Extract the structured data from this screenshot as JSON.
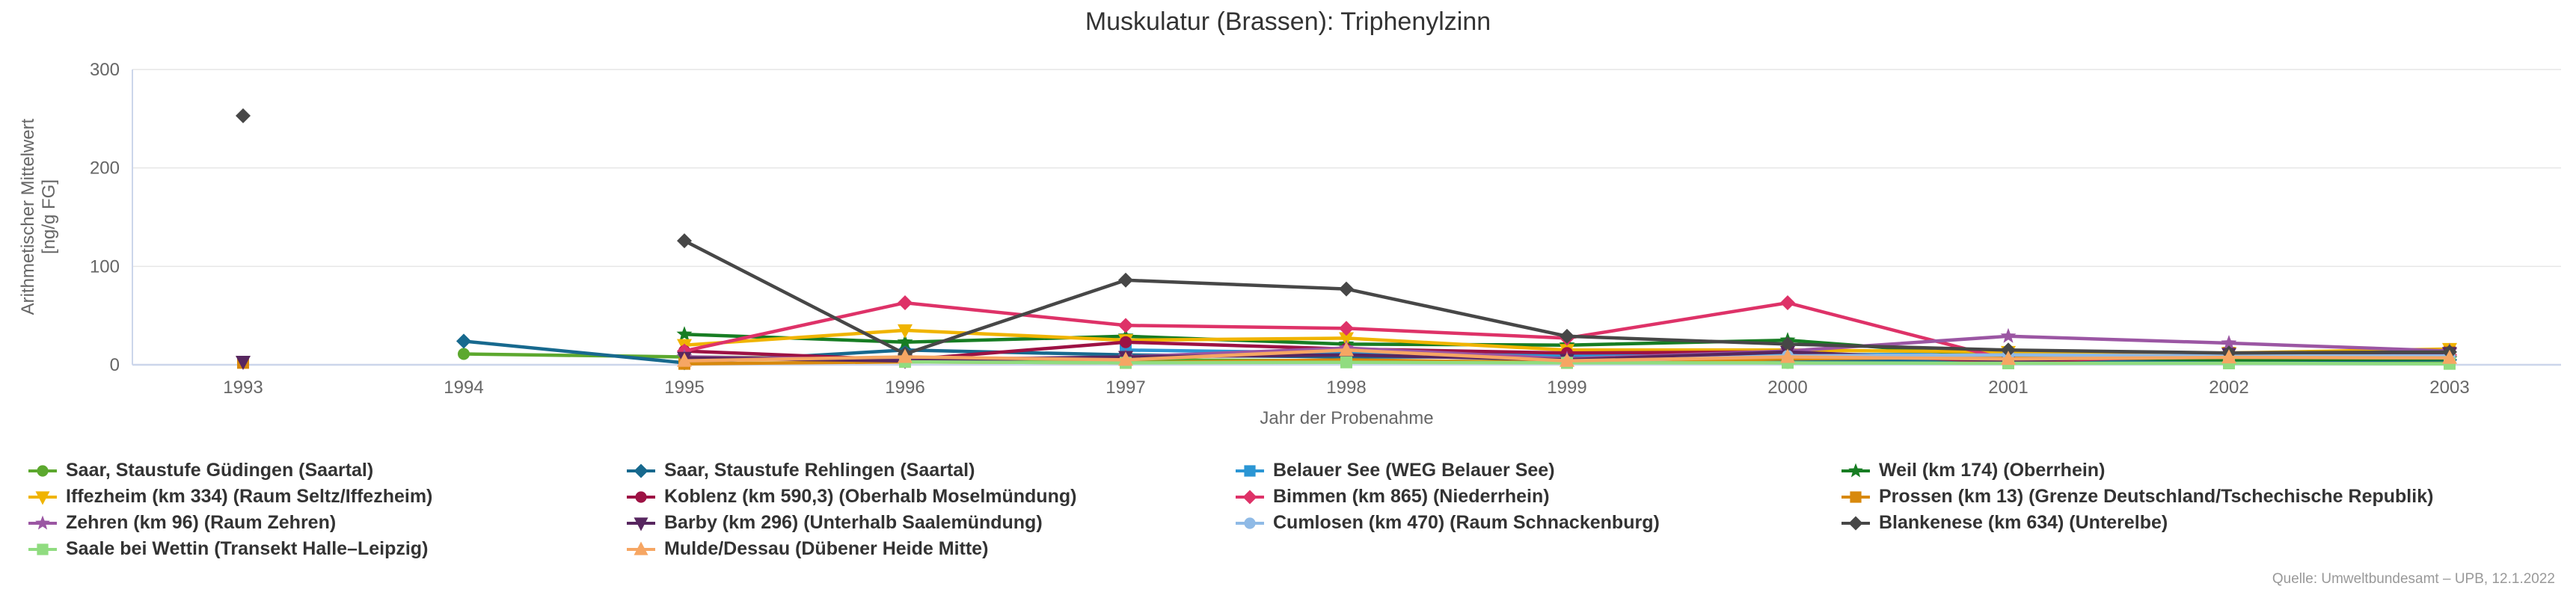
{
  "title": "Muskulatur (Brassen): Triphenylzinn",
  "source": "Quelle: Umweltbundesamt – UPB, 12.1.2022",
  "y_axis": {
    "title_line1": "Arithmetischer Mittelwert",
    "title_line2": "[ng/g FG]",
    "ticks": [
      0,
      100,
      200,
      300
    ]
  },
  "x_axis": {
    "title": "Jahr der Probenahme"
  },
  "colors": {
    "grid": "#e6e6e6",
    "axis_line": "#ccd6eb",
    "tick_text": "#666666",
    "title_text": "#333333",
    "source_text": "#999999"
  },
  "chart_data": {
    "type": "line",
    "title": "Muskulatur (Brassen): Triphenylzinn",
    "xlabel": "Jahr der Probenahme",
    "ylabel": "Arithmetischer Mittelwert [ng/g FG]",
    "categories": [
      1993,
      1994,
      1995,
      1996,
      1997,
      1998,
      1999,
      2000,
      2001,
      2002,
      2003
    ],
    "ylim": [
      0,
      300
    ],
    "yticks": [
      0,
      100,
      200,
      300
    ],
    "grid": true,
    "legend_position": "bottom",
    "series": [
      {
        "key": "saar-guedingen",
        "name": "Saar, Staustufe Güdingen (Saartal)",
        "color": "#5ca82e",
        "marker": "circle",
        "values": [
          null,
          11,
          8,
          6,
          5,
          4,
          3,
          2,
          2,
          3,
          4
        ]
      },
      {
        "key": "saar-rehlingen",
        "name": "Saar, Staustufe Rehlingen (Saartal)",
        "color": "#17698e",
        "marker": "diamond",
        "values": [
          null,
          24,
          2,
          15,
          10,
          8,
          8,
          5,
          4,
          4,
          5
        ]
      },
      {
        "key": "belauer-see",
        "name": "Belauer See (WEG Belauer See)",
        "color": "#2b96d4",
        "marker": "square",
        "values": [
          null,
          null,
          null,
          null,
          15,
          12,
          10,
          10,
          11,
          12,
          13
        ]
      },
      {
        "key": "weil",
        "name": "Weil (km 174) (Oberrhein)",
        "color": "#177d23",
        "marker": "star",
        "values": [
          null,
          null,
          31,
          23,
          29,
          21,
          20,
          25,
          8,
          5,
          6
        ]
      },
      {
        "key": "iffezheim",
        "name": "Iffezheim (km 334) (Raum Seltz/Iffezheim)",
        "color": "#f0b400",
        "marker": "triangle-down",
        "values": [
          null,
          null,
          20,
          35,
          25,
          27,
          15,
          15,
          13,
          12,
          16
        ]
      },
      {
        "key": "koblenz",
        "name": "Koblenz (km 590,3) (Oberhalb Moselmündung)",
        "color": "#9d1244",
        "marker": "circle",
        "values": [
          null,
          null,
          14,
          5,
          23,
          16,
          12,
          13,
          3,
          10,
          12
        ]
      },
      {
        "key": "bimmen",
        "name": "Bimmen (km 865) (Niederrhein)",
        "color": "#de3268",
        "marker": "diamond",
        "values": [
          null,
          null,
          14,
          63,
          40,
          37,
          27,
          63,
          5,
          8,
          10
        ]
      },
      {
        "key": "prossen",
        "name": "Prossen (km 13) (Grenze Deutschland/Tschechische Republik)",
        "color": "#d8890d",
        "marker": "square",
        "values": [
          2,
          null,
          1,
          3,
          2,
          5,
          2,
          6,
          8,
          12,
          13
        ]
      },
      {
        "key": "zehren",
        "name": "Zehren (km 96) (Raum Zehren)",
        "color": "#9b56a3",
        "marker": "star",
        "values": [
          null,
          null,
          8,
          5,
          8,
          17,
          6,
          14,
          29,
          22,
          14
        ]
      },
      {
        "key": "barby",
        "name": "Barby (km 296) (Unterhalb Saalemündung)",
        "color": "#57265f",
        "marker": "triangle-down",
        "values": [
          3,
          null,
          7,
          4,
          8,
          10,
          5,
          13,
          4,
          11,
          12
        ]
      },
      {
        "key": "cumlosen",
        "name": "Cumlosen (km 470) (Raum Schnackenburg)",
        "color": "#8fbae6",
        "marker": "circle",
        "values": [
          null,
          null,
          null,
          null,
          null,
          null,
          3,
          9,
          10,
          9,
          9
        ]
      },
      {
        "key": "blankenese",
        "name": "Blankenese (km 634) (Unterelbe)",
        "color": "#474747",
        "marker": "diamond",
        "values": [
          253,
          null,
          126,
          11,
          86,
          77,
          29,
          21,
          15,
          12,
          13
        ]
      },
      {
        "key": "saale-wettin",
        "name": "Saale bei Wettin (Transekt Halle–Leipzig)",
        "color": "#90dc80",
        "marker": "square",
        "values": [
          null,
          null,
          null,
          3,
          2,
          2.5,
          2,
          2,
          1.5,
          1.5,
          1
        ]
      },
      {
        "key": "mulde-dessau",
        "name": "Mulde/Dessau (Dübener Heide Mitte)",
        "color": "#f6a663",
        "marker": "triangle-up",
        "values": [
          null,
          null,
          4,
          8,
          5,
          15,
          4,
          8,
          6,
          7.5,
          7
        ]
      }
    ]
  }
}
